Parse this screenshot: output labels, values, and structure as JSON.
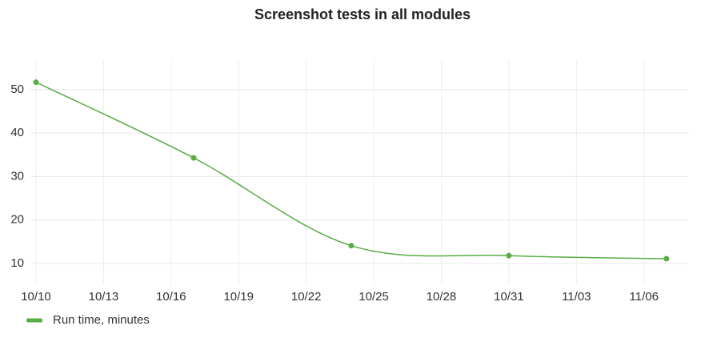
{
  "chart_data": {
    "type": "line",
    "title": "Screenshot tests in all modules",
    "x": [
      "10/10",
      "10/17",
      "10/24",
      "10/31",
      "11/07"
    ],
    "series": [
      {
        "name": "Run time, minutes",
        "color": "#5aac44",
        "values": [
          51.7,
          34.3,
          14.1,
          11.8,
          11.1
        ]
      }
    ],
    "xlim": [
      "10/10",
      "11/08"
    ],
    "xticks": [
      "10/10",
      "10/13",
      "10/16",
      "10/19",
      "10/22",
      "10/25",
      "10/28",
      "10/31",
      "11/03",
      "11/06"
    ],
    "ylim": [
      5.2,
      56.8
    ],
    "yticks": [
      10,
      20,
      30,
      40,
      50
    ],
    "grid": true,
    "legend": "bottom-left"
  }
}
